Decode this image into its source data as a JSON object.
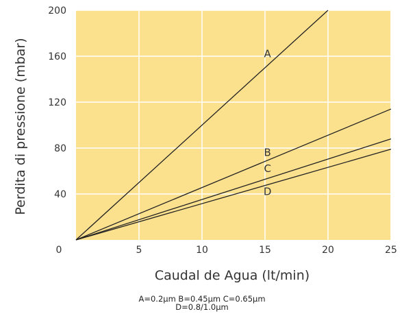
{
  "chart_data": {
    "type": "line",
    "xlabel": "Caudal de Agua (lt/min)",
    "ylabel": "Perdita di pressione  (mbar)",
    "xlim": [
      0,
      25
    ],
    "ylim": [
      0,
      200
    ],
    "xticks": [
      0,
      5,
      10,
      15,
      20,
      25
    ],
    "yticks": [
      0,
      40,
      80,
      120,
      160,
      200
    ],
    "grid": true,
    "background_color": "#fbe08e",
    "grid_color": "#ffffff",
    "line_color": "#222222",
    "series": [
      {
        "name": "A",
        "x": [
          0,
          20
        ],
        "y": [
          0,
          200
        ]
      },
      {
        "name": "B",
        "x": [
          0,
          25
        ],
        "y": [
          0,
          114
        ]
      },
      {
        "name": "C",
        "x": [
          0,
          25
        ],
        "y": [
          0,
          88
        ]
      },
      {
        "name": "D",
        "x": [
          0,
          25
        ],
        "y": [
          0,
          79
        ]
      }
    ],
    "series_label_positions": [
      {
        "name": "A",
        "x": 15.2,
        "y": 162
      },
      {
        "name": "B",
        "x": 15.2,
        "y": 76
      },
      {
        "name": "C",
        "x": 15.2,
        "y": 62
      },
      {
        "name": "D",
        "x": 15.2,
        "y": 42
      }
    ],
    "notes": [
      "A=0.2µm B=0.45µm C=0.65µm",
      "D=0.8/1.0µm"
    ]
  }
}
